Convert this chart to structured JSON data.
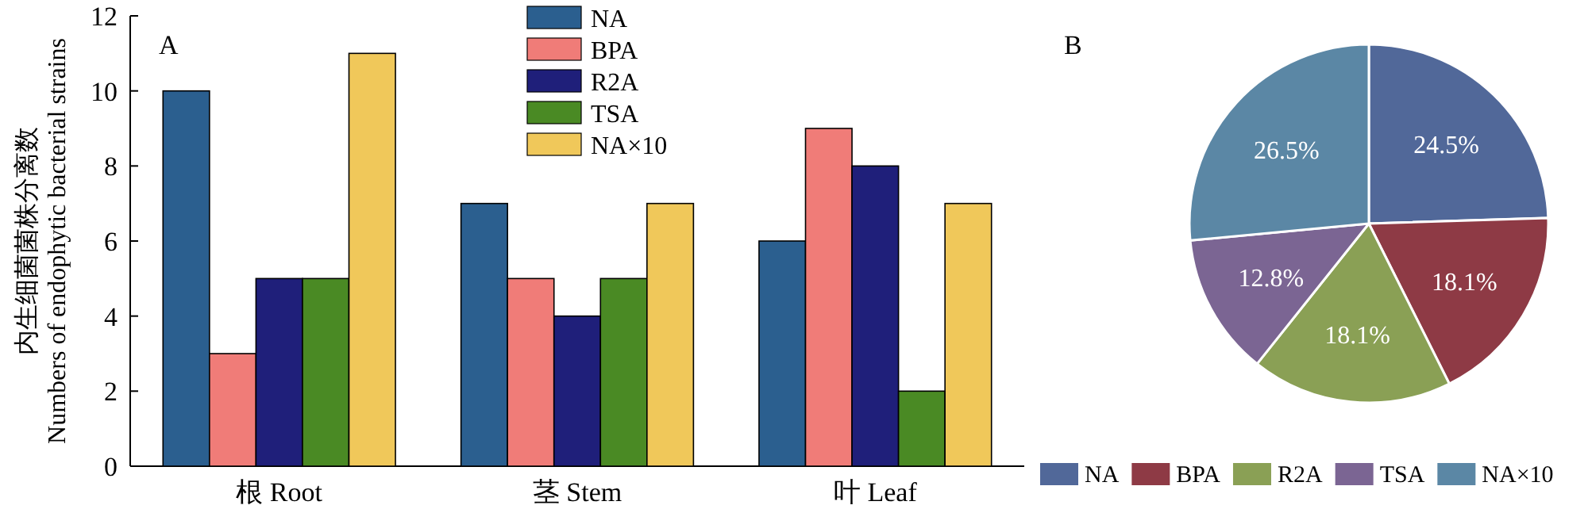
{
  "chart_data": [
    {
      "type": "bar",
      "title": "A",
      "ylabel": "内生细菌菌株分离数\nNumbers of endophytic bacterial strains",
      "categories": [
        "根 Root",
        "茎 Stem",
        "叶 Leaf"
      ],
      "series": [
        {
          "name": "NA",
          "color": "#2b5f8f",
          "values": [
            10,
            7,
            6
          ]
        },
        {
          "name": "BPA",
          "color": "#f07c78",
          "values": [
            3,
            5,
            9
          ]
        },
        {
          "name": "R2A",
          "color": "#1f1f7a",
          "values": [
            5,
            4,
            8
          ]
        },
        {
          "name": "TSA",
          "color": "#4a8a24",
          "values": [
            5,
            5,
            2
          ]
        },
        {
          "name": "NA×10",
          "color": "#f0c85a",
          "values": [
            11,
            7,
            7
          ]
        }
      ],
      "ylim": [
        0,
        12
      ],
      "yticks": [
        0,
        2,
        4,
        6,
        8,
        10,
        12
      ],
      "grid": false,
      "legend": "top"
    },
    {
      "type": "pie",
      "title": "B",
      "categories": [
        "NA",
        "BPA",
        "R2A",
        "TSA",
        "NA×10"
      ],
      "values": [
        24.5,
        18.1,
        18.1,
        12.8,
        26.5
      ],
      "colors": [
        "#516899",
        "#8e3a45",
        "#8aa055",
        "#7b6593",
        "#5b87a5"
      ],
      "value_labels": [
        "24.5%",
        "18.1%",
        "18.1%",
        "12.8%",
        "26.5%"
      ],
      "legend": "bottom"
    }
  ]
}
